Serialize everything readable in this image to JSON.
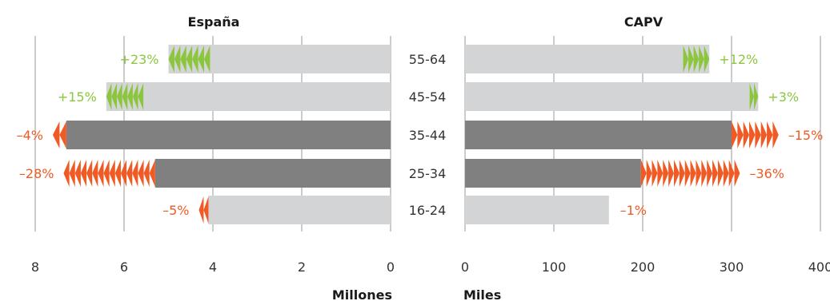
{
  "chart_data": [
    {
      "type": "bar",
      "orientation": "horizontal",
      "title": "España",
      "xlabel": "Millones",
      "xlim": [
        0,
        8
      ],
      "x_direction": "reversed",
      "ticks": [
        "8",
        "6",
        "4",
        "2",
        "0"
      ],
      "categories": [
        "55-64",
        "45-54",
        "35-44",
        "25-34",
        "16-24"
      ],
      "values": [
        5.0,
        6.4,
        7.3,
        5.3,
        4.1
      ],
      "changes": [
        "+23%",
        "+15%",
        "–4%",
        "–28%",
        "–5%"
      ],
      "change_values": [
        23,
        15,
        -4,
        -28,
        -5
      ],
      "bar_colors": [
        "#d3d4d5",
        "#d3d4d5",
        "#808080",
        "#808080",
        "#d3d4d5"
      ]
    },
    {
      "type": "bar",
      "orientation": "horizontal",
      "title": "CAPV",
      "xlabel": "Miles",
      "xlim": [
        0,
        400
      ],
      "ticks": [
        "0",
        "100",
        "200",
        "300",
        "400"
      ],
      "categories": [
        "55-64",
        "45-54",
        "35-44",
        "25-34",
        "16-24"
      ],
      "values": [
        275,
        330,
        300,
        198,
        162
      ],
      "changes": [
        "+12%",
        "+3%",
        "–15%",
        "–36%",
        "–1%"
      ],
      "change_values": [
        12,
        3,
        -15,
        -36,
        -1
      ],
      "bar_colors": [
        "#d3d4d5",
        "#d3d4d5",
        "#808080",
        "#808080",
        "#d3d4d5"
      ]
    }
  ],
  "colors": {
    "increase": "#8cc63f",
    "decrease": "#f05a24",
    "light_bar": "#d3d4d5",
    "dark_bar": "#808080",
    "grid": "#9a9a9a"
  }
}
